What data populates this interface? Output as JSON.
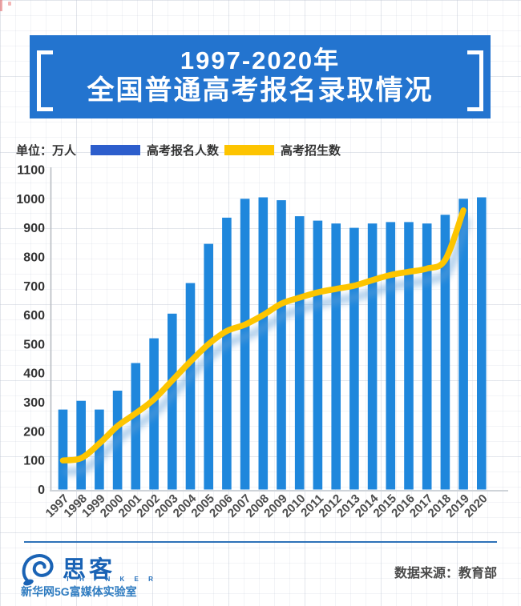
{
  "header": {
    "title_line1": "1997-2020年",
    "title_line2": "全国普通高考报名录取情况",
    "banner_color": "#2374cf",
    "text_color": "#ffffff"
  },
  "legend": {
    "unit_label": "单位：万人",
    "items": [
      {
        "label": "高考报名人数",
        "color": "#2d5ecc",
        "marker": "bar"
      },
      {
        "label": "高考招生数",
        "color": "#fdc400",
        "marker": "line"
      }
    ]
  },
  "chart_data": {
    "type": "bar",
    "title": "1997-2020年全国普通高考报名录取情况",
    "unit": "万人",
    "categories": [
      "1997",
      "1998",
      "1999",
      "2000",
      "2001",
      "2002",
      "2003",
      "2004",
      "2005",
      "2006",
      "2007",
      "2008",
      "2009",
      "2010",
      "2011",
      "2012",
      "2013",
      "2014",
      "2015",
      "2016",
      "2017",
      "2018",
      "2019",
      "2020"
    ],
    "series": [
      {
        "name": "高考报名人数",
        "type": "bar",
        "color": "#1f87dc",
        "values": [
          275,
          305,
          275,
          340,
          435,
          520,
          605,
          710,
          845,
          935,
          1000,
          1005,
          995,
          940,
          925,
          915,
          900,
          915,
          920,
          920,
          915,
          945,
          1000,
          1005
        ]
      },
      {
        "name": "高考招生数",
        "type": "line",
        "color": "#fdc500",
        "glow_color": "#5f9fd9",
        "values": [
          100,
          108,
          158,
          218,
          262,
          310,
          375,
          440,
          500,
          545,
          567,
          600,
          639,
          660,
          678,
          690,
          701,
          720,
          738,
          749,
          760,
          790,
          960,
          null
        ]
      }
    ],
    "xlabel": "",
    "ylabel": "单位：万人",
    "ylim": [
      0,
      1100
    ],
    "ytick_step": 100,
    "grid": false,
    "legend_position": "top"
  },
  "footer": {
    "brand_name": "思客",
    "brand_sub": "T H I N K E R",
    "brand_org": "新华网5G富媒体实验室",
    "source": "数据来源：教育部",
    "line_color": "#2e72b8",
    "brand_color": "#1a63b5"
  },
  "decor": {
    "corner_mark_color": "#e06060"
  }
}
